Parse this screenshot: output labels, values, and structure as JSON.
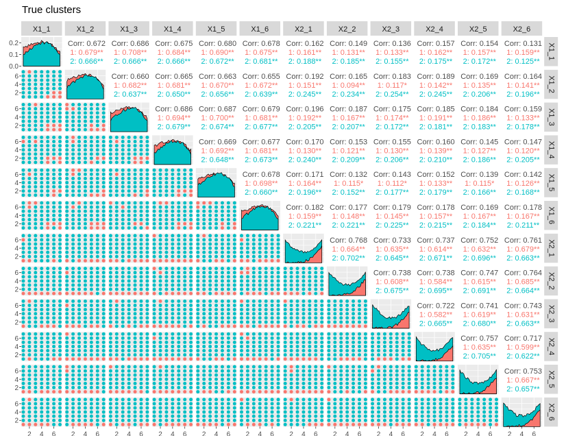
{
  "title": "True clusters",
  "colors": {
    "cluster_1": "#F8766D",
    "cluster_2": "#00BFC4",
    "panel_bg": "#EBEBEB",
    "strip_bg": "#D9D9D9",
    "grid": "#FFFFFF",
    "axis_text": "#4D4D4D"
  },
  "chart_data": {
    "type": "scatterplot-matrix",
    "title": "True clusters",
    "variables": [
      "X1_1",
      "X1_2",
      "X1_3",
      "X1_4",
      "X1_5",
      "X1_6",
      "X2_1",
      "X2_2",
      "X2_3",
      "X2_4",
      "X2_5",
      "X2_6"
    ],
    "diagonal_y_ticks": [
      "0.0",
      "0.1",
      "0.2"
    ],
    "diagonal_y_lim": [
      0,
      0.25
    ],
    "y_ticks": [
      "2",
      "4",
      "6"
    ],
    "x_ticks": [
      "2",
      "4",
      "6"
    ],
    "axis_range": [
      1,
      7
    ],
    "corr_label": "Corr:",
    "correlations": {
      "overall": [
        [
          null,
          "0.672",
          "0.686",
          "0.675",
          "0.680",
          "0.678",
          "0.162",
          "0.149",
          "0.136",
          "0.157",
          "0.154",
          "0.131"
        ],
        [
          null,
          null,
          "0.660",
          "0.665",
          "0.663",
          "0.655",
          "0.192",
          "0.165",
          "0.183",
          "0.189",
          "0.169",
          "0.164"
        ],
        [
          null,
          null,
          null,
          "0.686",
          "0.687",
          "0.679",
          "0.196",
          "0.187",
          "0.175",
          "0.185",
          "0.184",
          "0.159"
        ],
        [
          null,
          null,
          null,
          null,
          "0.669",
          "0.677",
          "0.170",
          "0.153",
          "0.155",
          "0.160",
          "0.145",
          "0.147"
        ],
        [
          null,
          null,
          null,
          null,
          null,
          "0.678",
          "0.171",
          "0.132",
          "0.143",
          "0.152",
          "0.139",
          "0.142"
        ],
        [
          null,
          null,
          null,
          null,
          null,
          null,
          "0.182",
          "0.177",
          "0.179",
          "0.178",
          "0.169",
          "0.178"
        ],
        [
          null,
          null,
          null,
          null,
          null,
          null,
          null,
          "0.768",
          "0.733",
          "0.737",
          "0.752",
          "0.761"
        ],
        [
          null,
          null,
          null,
          null,
          null,
          null,
          null,
          null,
          "0.738",
          "0.738",
          "0.747",
          "0.764"
        ],
        [
          null,
          null,
          null,
          null,
          null,
          null,
          null,
          null,
          null,
          "0.722",
          "0.741",
          "0.743"
        ],
        [
          null,
          null,
          null,
          null,
          null,
          null,
          null,
          null,
          null,
          null,
          "0.757",
          "0.717"
        ],
        [
          null,
          null,
          null,
          null,
          null,
          null,
          null,
          null,
          null,
          null,
          null,
          "0.753"
        ],
        [
          null,
          null,
          null,
          null,
          null,
          null,
          null,
          null,
          null,
          null,
          null,
          null
        ]
      ],
      "cluster_1": [
        [
          null,
          "0.679**",
          "0.708**",
          "0.684**",
          "0.690**",
          "0.675**",
          "0.161**",
          "0.131**",
          "0.133**",
          "0.162**",
          "0.157**",
          "0.159**"
        ],
        [
          null,
          null,
          "0.682**",
          "0.681**",
          "0.670**",
          "0.672**",
          "0.151**",
          "0.094**",
          "0.117*",
          "0.142**",
          "0.135**",
          "0.141**"
        ],
        [
          null,
          null,
          null,
          "0.694**",
          "0.700**",
          "0.681**",
          "0.192**",
          "0.167**",
          "0.174**",
          "0.191**",
          "0.186**",
          "0.133**"
        ],
        [
          null,
          null,
          null,
          null,
          "0.692**",
          "0.681**",
          "0.130**",
          "0.121**",
          "0.130**",
          "0.139**",
          "0.127**",
          "0.120**"
        ],
        [
          null,
          null,
          null,
          null,
          null,
          "0.698**",
          "0.164**",
          "0.115*",
          "0.112*",
          "0.133**",
          "0.115*",
          "0.126**"
        ],
        [
          null,
          null,
          null,
          null,
          null,
          null,
          "0.159**",
          "0.148**",
          "0.145**",
          "0.157**",
          "0.167**",
          "0.167**"
        ],
        [
          null,
          null,
          null,
          null,
          null,
          null,
          null,
          "0.664**",
          "0.635**",
          "0.614**",
          "0.632**",
          "0.679**"
        ],
        [
          null,
          null,
          null,
          null,
          null,
          null,
          null,
          null,
          "0.608**",
          "0.584**",
          "0.615**",
          "0.685**"
        ],
        [
          null,
          null,
          null,
          null,
          null,
          null,
          null,
          null,
          null,
          "0.582**",
          "0.619**",
          "0.631**"
        ],
        [
          null,
          null,
          null,
          null,
          null,
          null,
          null,
          null,
          null,
          null,
          "0.635**",
          "0.599**"
        ],
        [
          null,
          null,
          null,
          null,
          null,
          null,
          null,
          null,
          null,
          null,
          null,
          "0.667**"
        ],
        [
          null,
          null,
          null,
          null,
          null,
          null,
          null,
          null,
          null,
          null,
          null,
          null
        ]
      ],
      "cluster_2": [
        [
          null,
          "0.666**",
          "0.666**",
          "0.666**",
          "0.672**",
          "0.681**",
          "0.188**",
          "0.185**",
          "0.155**",
          "0.175**",
          "0.172**",
          "0.125**"
        ],
        [
          null,
          null,
          "0.637**",
          "0.650**",
          "0.656**",
          "0.639**",
          "0.245**",
          "0.234**",
          "0.254**",
          "0.245**",
          "0.206**",
          "0.196**"
        ],
        [
          null,
          null,
          null,
          "0.679**",
          "0.674**",
          "0.677**",
          "0.205**",
          "0.207**",
          "0.172**",
          "0.181**",
          "0.183**",
          "0.178**"
        ],
        [
          null,
          null,
          null,
          null,
          "0.648**",
          "0.673**",
          "0.240**",
          "0.209**",
          "0.206**",
          "0.210**",
          "0.186**",
          "0.205**"
        ],
        [
          null,
          null,
          null,
          null,
          null,
          "0.660**",
          "0.196**",
          "0.152**",
          "0.177**",
          "0.179**",
          "0.166**",
          "0.168**"
        ],
        [
          null,
          null,
          null,
          null,
          null,
          null,
          "0.221**",
          "0.221**",
          "0.225**",
          "0.215**",
          "0.184**",
          "0.211**"
        ],
        [
          null,
          null,
          null,
          null,
          null,
          null,
          null,
          "0.702**",
          "0.645**",
          "0.671**",
          "0.696**",
          "0.663**"
        ],
        [
          null,
          null,
          null,
          null,
          null,
          null,
          null,
          null,
          "0.675**",
          "0.695**",
          "0.691**",
          "0.664**"
        ],
        [
          null,
          null,
          null,
          null,
          null,
          null,
          null,
          null,
          null,
          "0.665**",
          "0.680**",
          "0.663**"
        ],
        [
          null,
          null,
          null,
          null,
          null,
          null,
          null,
          null,
          null,
          null,
          "0.705**",
          "0.622**"
        ],
        [
          null,
          null,
          null,
          null,
          null,
          null,
          null,
          null,
          null,
          null,
          null,
          "0.657**"
        ],
        [
          null,
          null,
          null,
          null,
          null,
          null,
          null,
          null,
          null,
          null,
          null,
          null
        ]
      ]
    },
    "density_group1": [
      0.16,
      0.18,
      0.2,
      0.21,
      0.2,
      0.17,
      0.12
    ],
    "density_group2": [
      0.1,
      0.14,
      0.18,
      0.2,
      0.2,
      0.17,
      0.09
    ],
    "density_shape2": [
      0.2,
      0.14,
      0.1,
      0.09,
      0.1,
      0.14,
      0.2
    ],
    "density_shape2_cluster1": [
      0.0,
      0.0,
      0.0,
      0.01,
      0.03,
      0.08,
      0.14
    ]
  }
}
